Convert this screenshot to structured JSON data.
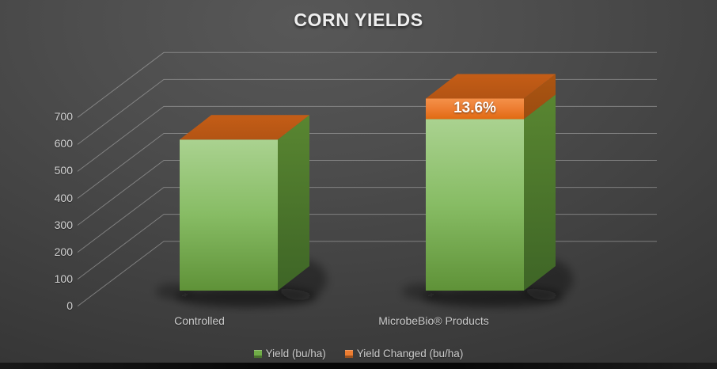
{
  "title": "CORN YIELDS",
  "chart_data": {
    "type": "bar",
    "subtype": "3d-stacked-column",
    "categories": [
      "Controlled",
      "MicrobeBio® Products"
    ],
    "series": [
      {
        "name": "Yield (bu/ha)",
        "color": "#70ad47",
        "values": [
          560,
          636
        ]
      },
      {
        "name": "Yield Changed (bu/ha)",
        "color": "#ed7d31",
        "values": [
          0,
          76
        ]
      }
    ],
    "annotations": [
      {
        "text": "13.6%",
        "category": "MicrobeBio® Products",
        "series": "Yield Changed (bu/ha)"
      }
    ],
    "ylabel": "",
    "xlabel": "",
    "ylim": [
      0,
      700
    ],
    "yticks": [
      0,
      100,
      200,
      300,
      400,
      500,
      600,
      700
    ],
    "grid": true,
    "legend_position": "bottom",
    "background": "dark-gray-gradient"
  }
}
